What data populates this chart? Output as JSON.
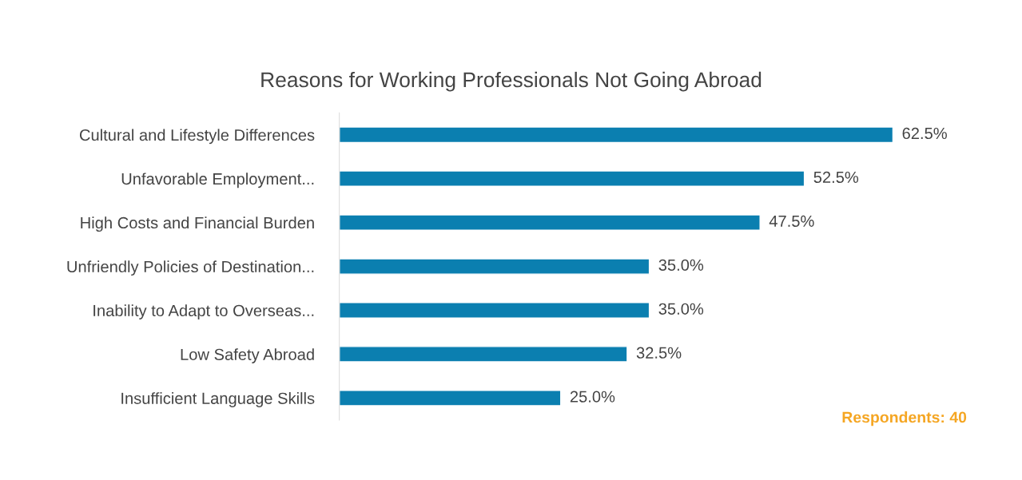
{
  "chart_data": {
    "type": "bar",
    "orientation": "horizontal",
    "title": "Reasons for Working Professionals Not Going Abroad",
    "categories": [
      "Cultural and Lifestyle Differences",
      "Unfavorable Employment...",
      "High Costs and Financial Burden",
      "Unfriendly Policies of Destination...",
      "Inability to Adapt to Overseas...",
      "Low Safety Abroad",
      "Insufficient Language Skills"
    ],
    "values": [
      62.5,
      52.5,
      47.5,
      35.0,
      35.0,
      32.5,
      25.0
    ],
    "value_labels": [
      "62.5%",
      "52.5%",
      "47.5%",
      "35.0%",
      "35.0%",
      "32.5%",
      "25.0%"
    ],
    "color": "#0b7fb0",
    "grid": false,
    "annotations": [
      "Respondents: 40"
    ]
  }
}
